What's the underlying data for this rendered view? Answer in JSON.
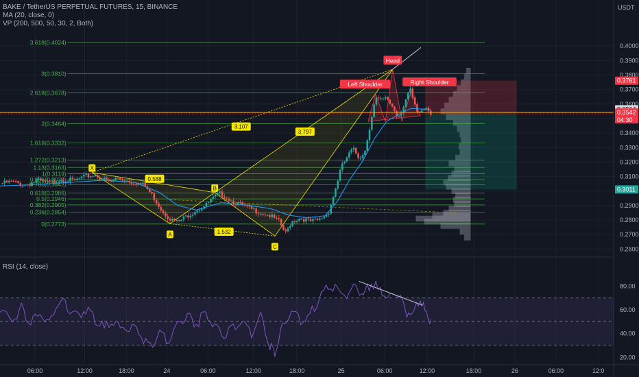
{
  "header": {
    "title": "BAKE / TetherUS PERPETUAL FUTURES, 15, BINANCE",
    "ma_label": "MA (20, close, 0)",
    "vp_label": "VP (200, 500, 50, 30, 2, Both)",
    "currency": "USDT",
    "rsi_label": "RSI (14, close)"
  },
  "colors": {
    "background": "#131722",
    "up": "#26a69a",
    "down": "#ef5350",
    "fib": "#4caf50",
    "pattern": "#f7e600",
    "ma": "#2196f3",
    "rsi": "#7e57c2",
    "price_line": "#ff9800",
    "label_red": "#f23645"
  },
  "chart_data": [
    {
      "type": "candlestick",
      "title": "BAKE / TetherUS PERPETUAL FUTURES, 15, BINANCE",
      "ylim": [
        0.2583,
        0.41
      ],
      "y_ticks": [
        "0.4000",
        "0.3900",
        "0.3800",
        "0.3700",
        "0.3600",
        "0.3500",
        "0.3400",
        "0.3300",
        "0.3200",
        "0.3100",
        "0.3000",
        "0.2900",
        "0.2800",
        "0.2700",
        "0.2600"
      ],
      "x_ticks": [
        {
          "label": "06:00",
          "i": 0.057
        },
        {
          "label": "12:00",
          "i": 0.138
        },
        {
          "label": "18:00",
          "i": 0.206
        },
        {
          "label": "24",
          "i": 0.272
        },
        {
          "label": "06:00",
          "i": 0.339
        },
        {
          "label": "12:00",
          "i": 0.413
        },
        {
          "label": "18:00",
          "i": 0.484
        },
        {
          "label": "25",
          "i": 0.556
        },
        {
          "label": "06:00",
          "i": 0.627
        },
        {
          "label": "12:00",
          "i": 0.696
        },
        {
          "label": "18:00",
          "i": 0.772
        },
        {
          "label": "26",
          "i": 0.839
        },
        {
          "label": "06:00",
          "i": 0.906
        },
        {
          "label": "12:0",
          "i": 0.975
        }
      ],
      "price_path": [
        [
          0.0,
          0.305
        ],
        [
          0.02,
          0.3065
        ],
        [
          0.04,
          0.304
        ],
        [
          0.06,
          0.3072
        ],
        [
          0.08,
          0.3055
        ],
        [
          0.1,
          0.3085
        ],
        [
          0.12,
          0.307
        ],
        [
          0.14,
          0.31
        ],
        [
          0.155,
          0.3112
        ],
        [
          0.17,
          0.308
        ],
        [
          0.18,
          0.306
        ],
        [
          0.19,
          0.309
        ],
        [
          0.205,
          0.3075
        ],
        [
          0.22,
          0.306
        ],
        [
          0.235,
          0.304
        ],
        [
          0.25,
          0.296
        ],
        [
          0.265,
          0.286
        ],
        [
          0.28,
          0.28
        ],
        [
          0.29,
          0.2785
        ],
        [
          0.305,
          0.283
        ],
        [
          0.32,
          0.287
        ],
        [
          0.335,
          0.29
        ],
        [
          0.35,
          0.296
        ],
        [
          0.36,
          0.2985
        ],
        [
          0.375,
          0.294
        ],
        [
          0.39,
          0.291
        ],
        [
          0.405,
          0.288
        ],
        [
          0.42,
          0.286
        ],
        [
          0.44,
          0.283
        ],
        [
          0.455,
          0.279
        ],
        [
          0.465,
          0.2705
        ],
        [
          0.475,
          0.279
        ],
        [
          0.49,
          0.2815
        ],
        [
          0.505,
          0.279
        ],
        [
          0.52,
          0.28
        ],
        [
          0.535,
          0.285
        ],
        [
          0.545,
          0.299
        ],
        [
          0.555,
          0.315
        ],
        [
          0.565,
          0.323
        ],
        [
          0.575,
          0.329
        ],
        [
          0.585,
          0.323
        ],
        [
          0.595,
          0.328
        ],
        [
          0.605,
          0.35
        ],
        [
          0.612,
          0.364
        ],
        [
          0.62,
          0.362
        ],
        [
          0.63,
          0.364
        ],
        [
          0.64,
          0.358
        ],
        [
          0.648,
          0.351
        ],
        [
          0.655,
          0.356
        ],
        [
          0.662,
          0.364
        ],
        [
          0.668,
          0.37
        ],
        [
          0.675,
          0.36
        ],
        [
          0.68,
          0.353
        ],
        [
          0.688,
          0.356
        ],
        [
          0.695,
          0.358
        ],
        [
          0.702,
          0.3542
        ]
      ],
      "ma_path": [
        [
          0.0,
          0.3035
        ],
        [
          0.06,
          0.3045
        ],
        [
          0.12,
          0.3062
        ],
        [
          0.17,
          0.3075
        ],
        [
          0.22,
          0.306
        ],
        [
          0.26,
          0.299
        ],
        [
          0.29,
          0.29
        ],
        [
          0.32,
          0.287
        ],
        [
          0.36,
          0.292
        ],
        [
          0.4,
          0.2905
        ],
        [
          0.44,
          0.288
        ],
        [
          0.47,
          0.2835
        ],
        [
          0.5,
          0.2815
        ],
        [
          0.53,
          0.283
        ],
        [
          0.55,
          0.293
        ],
        [
          0.57,
          0.308
        ],
        [
          0.59,
          0.32
        ],
        [
          0.61,
          0.336
        ],
        [
          0.63,
          0.348
        ],
        [
          0.65,
          0.353
        ],
        [
          0.67,
          0.357
        ],
        [
          0.69,
          0.3565
        ],
        [
          0.702,
          0.356
        ]
      ],
      "fib_levels": [
        {
          "label": "3.618(0.4024)",
          "price": 0.4024
        },
        {
          "label": "3(0.3810)",
          "price": 0.381
        },
        {
          "label": "2.618(0.3678)",
          "price": 0.3678
        },
        {
          "label": "2(0.3464)",
          "price": 0.3464
        },
        {
          "label": "1.618(0.3332)",
          "price": 0.3332
        },
        {
          "label": "1.272(0.3213)",
          "price": 0.3213
        },
        {
          "label": "1.13(0.3163)",
          "price": 0.3163
        },
        {
          "label": "1(0.3119)",
          "price": 0.3119
        },
        {
          "label": "0.886(0.3079)",
          "price": 0.3079
        },
        {
          "label": "0.786(0.3045)",
          "price": 0.3045
        },
        {
          "label": "0.618(0.2986)",
          "price": 0.2986
        },
        {
          "label": "0.5(0.2946)",
          "price": 0.2946
        },
        {
          "label": "0.382(0.2905)",
          "price": 0.2905
        },
        {
          "label": "0.236(0.2854)",
          "price": 0.2854
        },
        {
          "label": "0(0.2773)",
          "price": 0.2773
        }
      ],
      "pattern_points": [
        {
          "name": "X",
          "i": 0.15,
          "price": 0.3128
        },
        {
          "name": "A",
          "i": 0.277,
          "price": 0.2775
        },
        {
          "name": "B",
          "i": 0.35,
          "price": 0.299
        },
        {
          "name": "C",
          "i": 0.448,
          "price": 0.269
        }
      ],
      "pattern_ratios": [
        "0.588",
        "1.532",
        "3.107",
        "3.797"
      ],
      "hs_labels": [
        "Left Shoulder",
        "Head",
        "Right Shoulder"
      ],
      "price_labels": [
        {
          "text": "0.3761",
          "price": 0.3761,
          "color": "#f23645"
        },
        {
          "text": "0.3564",
          "price": 0.3564,
          "color": "#d1d4dc"
        },
        {
          "text": "0.3542",
          "price": 0.3542,
          "color": "#f23645",
          "sub": "04:30"
        },
        {
          "text": "0.3011",
          "price": 0.3011,
          "color": "#26a69a"
        }
      ],
      "position": {
        "stop": 0.3761,
        "entry": 0.3542,
        "target": 0.3011
      }
    },
    {
      "type": "line",
      "title": "RSI (14, close)",
      "ylim": [
        15,
        90
      ],
      "y_ticks": [
        "80.00",
        "60.00",
        "40.00",
        "20.00"
      ],
      "bands": [
        70,
        50,
        30
      ],
      "values": [
        [
          0.0,
          58
        ],
        [
          0.02,
          52
        ],
        [
          0.035,
          62
        ],
        [
          0.05,
          48
        ],
        [
          0.065,
          57
        ],
        [
          0.08,
          50
        ],
        [
          0.095,
          68
        ],
        [
          0.11,
          62
        ],
        [
          0.125,
          55
        ],
        [
          0.14,
          60
        ],
        [
          0.155,
          52
        ],
        [
          0.17,
          44
        ],
        [
          0.185,
          50
        ],
        [
          0.2,
          42
        ],
        [
          0.215,
          47
        ],
        [
          0.23,
          38
        ],
        [
          0.245,
          30
        ],
        [
          0.26,
          40
        ],
        [
          0.275,
          35
        ],
        [
          0.29,
          50
        ],
        [
          0.305,
          55
        ],
        [
          0.32,
          48
        ],
        [
          0.335,
          58
        ],
        [
          0.35,
          46
        ],
        [
          0.365,
          38
        ],
        [
          0.38,
          45
        ],
        [
          0.395,
          52
        ],
        [
          0.41,
          40
        ],
        [
          0.425,
          56
        ],
        [
          0.44,
          30
        ],
        [
          0.448,
          25
        ],
        [
          0.46,
          44
        ],
        [
          0.475,
          60
        ],
        [
          0.49,
          52
        ],
        [
          0.505,
          56
        ],
        [
          0.52,
          70
        ],
        [
          0.535,
          82
        ],
        [
          0.55,
          76
        ],
        [
          0.565,
          72
        ],
        [
          0.58,
          80
        ],
        [
          0.592,
          72
        ],
        [
          0.605,
          84
        ],
        [
          0.62,
          74
        ],
        [
          0.632,
          70
        ],
        [
          0.645,
          77
        ],
        [
          0.66,
          60
        ],
        [
          0.672,
          55
        ],
        [
          0.685,
          68
        ],
        [
          0.695,
          56
        ],
        [
          0.702,
          52
        ]
      ],
      "divergence": [
        [
          0.585,
          84
        ],
        [
          0.688,
          64
        ]
      ]
    }
  ]
}
